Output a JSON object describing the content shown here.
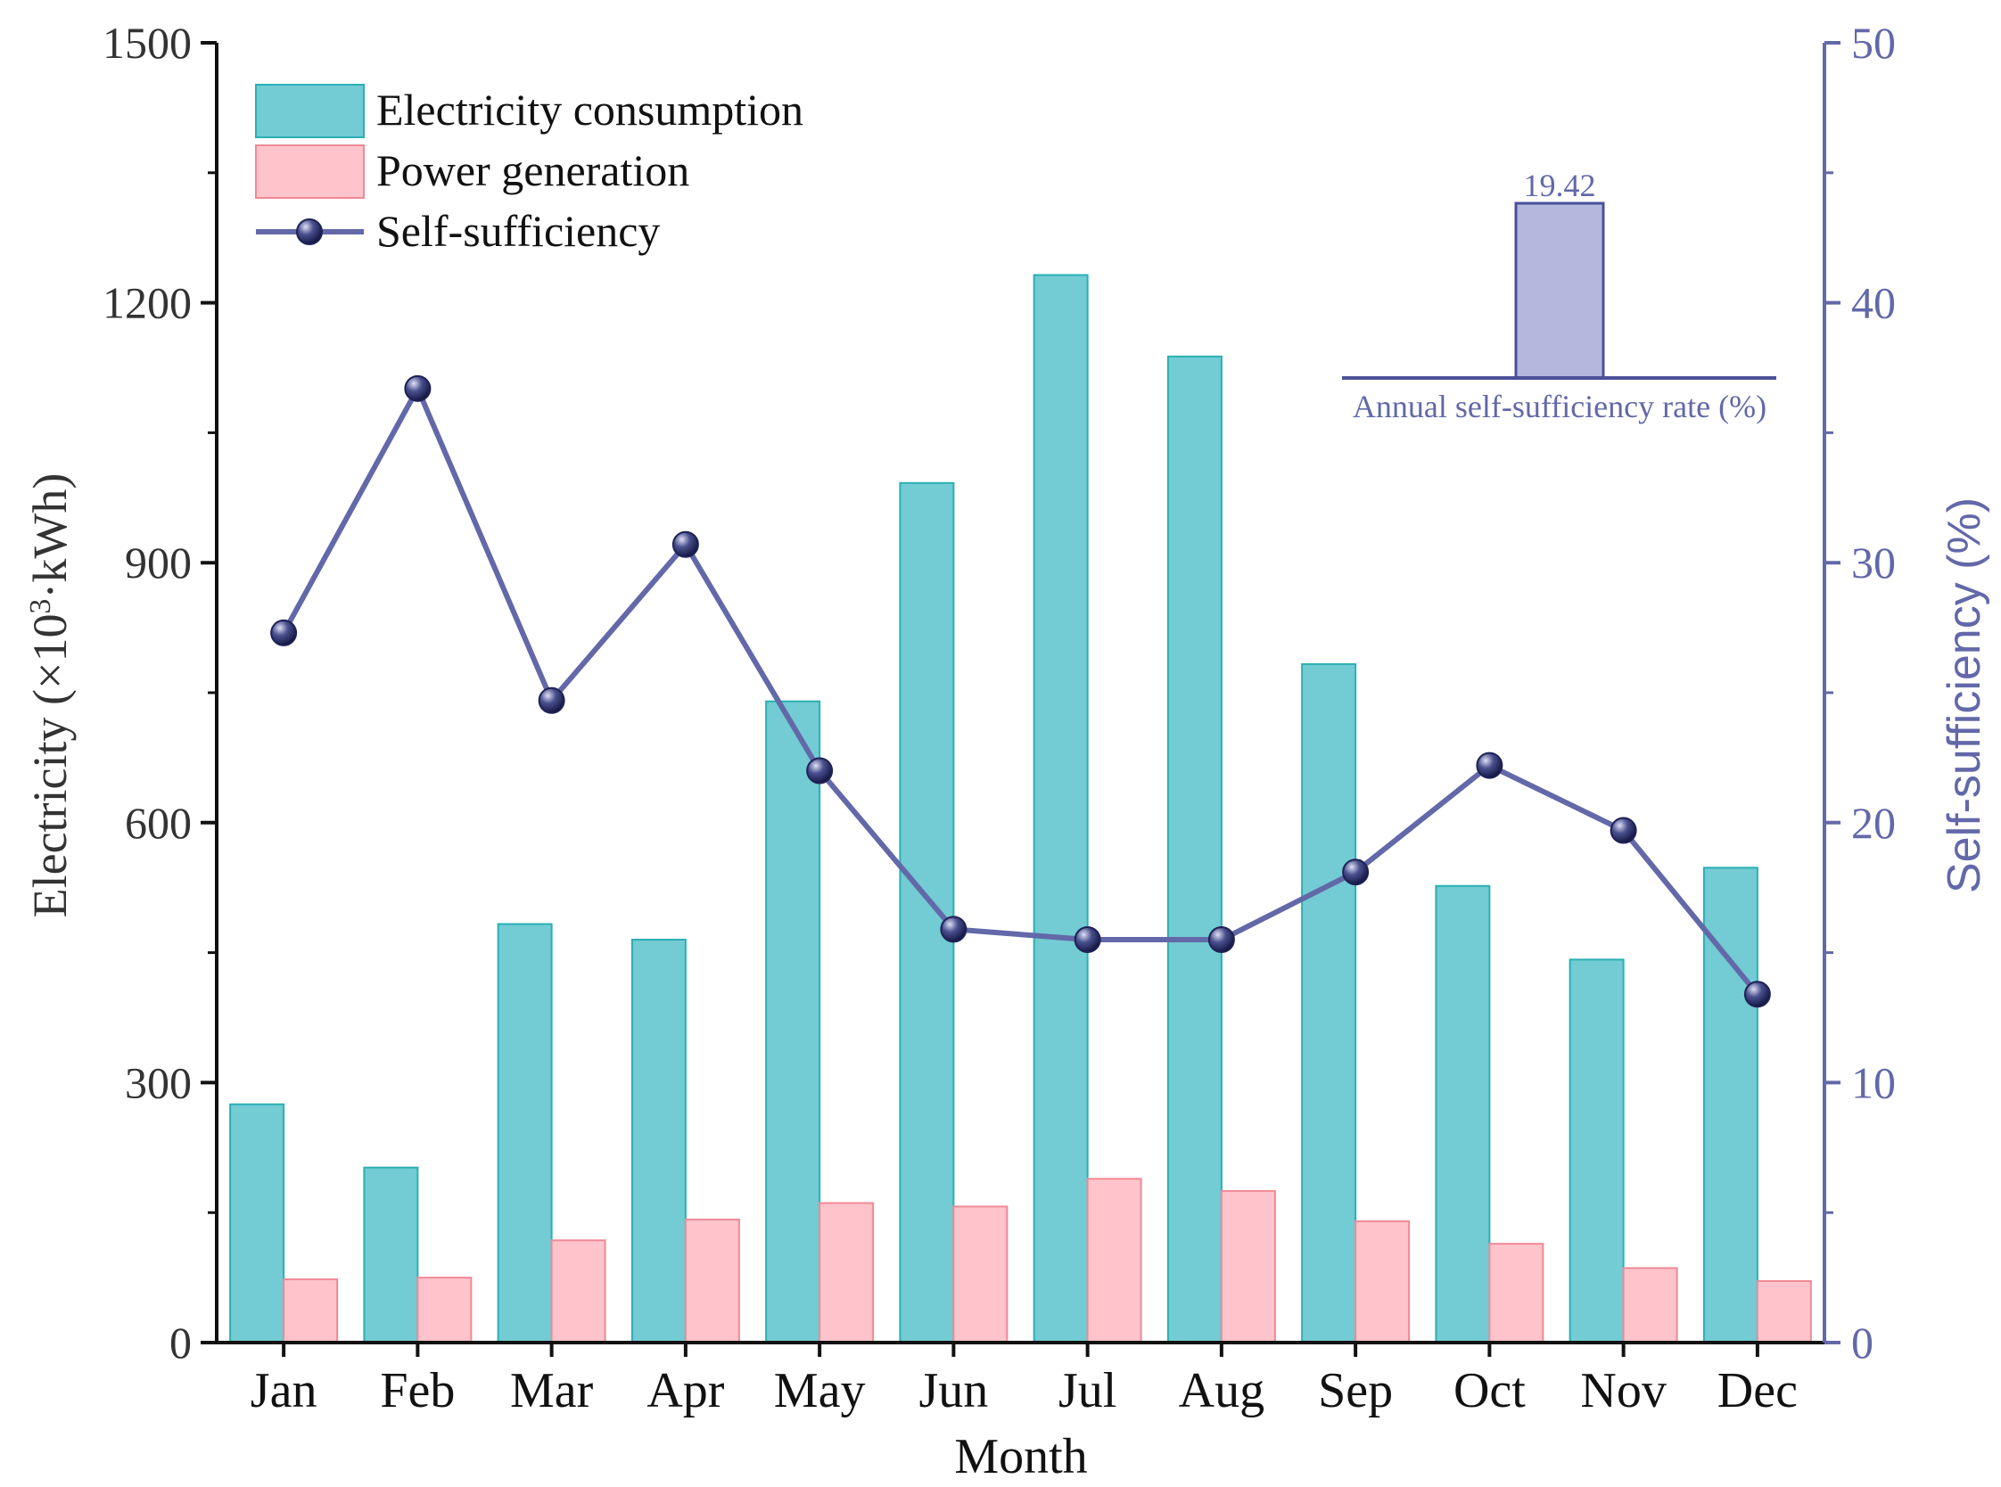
{
  "chart_data": {
    "type": "bar",
    "categories": [
      "Jan",
      "Feb",
      "Mar",
      "Apr",
      "May",
      "Jun",
      "Jul",
      "Aug",
      "Sep",
      "Oct",
      "Nov",
      "Dec"
    ],
    "series": [
      {
        "name": "Electricity consumption",
        "axis": "left",
        "type": "bar",
        "color": "#73cbd3",
        "stroke": "#2ab0b4",
        "values": [
          275,
          202,
          483,
          465,
          740,
          992,
          1232,
          1138,
          783,
          527,
          442,
          548
        ]
      },
      {
        "name": "Power generation",
        "axis": "left",
        "type": "bar",
        "color": "#ffc4cb",
        "stroke": "#f08a96",
        "values": [
          73,
          75,
          118,
          142,
          161,
          157,
          189,
          175,
          140,
          114,
          86,
          71
        ]
      },
      {
        "name": "Self-sufficiency",
        "axis": "right",
        "type": "line",
        "color": "#6268a8",
        "marker": "#2d3270",
        "values": [
          27.3,
          36.7,
          24.7,
          30.7,
          22.0,
          15.9,
          15.5,
          15.5,
          18.1,
          22.2,
          19.7,
          13.4
        ]
      }
    ],
    "xlabel": "Month",
    "ylabel": "Electricity (×10³·kWh)",
    "ylabel_parts": {
      "before": "Electricity (×10",
      "sup": "3",
      "after": "·kWh)"
    },
    "y2label": "Self-sufficiency (%)",
    "ylim": [
      0,
      1500
    ],
    "y2lim": [
      0,
      50
    ],
    "yticks": [
      "0",
      "300",
      "600",
      "900",
      "1200",
      "1500"
    ],
    "y2ticks": [
      "0",
      "10",
      "20",
      "30",
      "40",
      "50"
    ],
    "legend_position": "top-left",
    "grid": false,
    "inset": {
      "label": "Annual self-sufficiency rate (%)",
      "value": 19.42,
      "value_label": "19.42",
      "color": "#b3b8dc"
    }
  }
}
